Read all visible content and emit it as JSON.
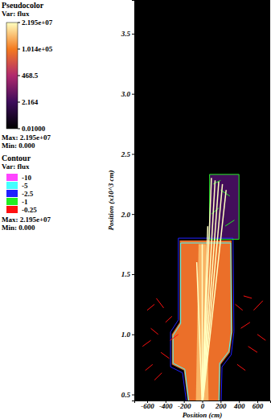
{
  "chart_data": {
    "type": "pseudocolor",
    "legend_title": "Pseudocolor",
    "variable_label": "Var: flux",
    "x_label": "Position (cm)",
    "y_label": "Position (x10^3 cm)",
    "xlim": [
      -740,
      740
    ],
    "ylim": [
      0.45,
      3.78
    ],
    "xticks": [
      -600,
      -400,
      -200,
      0,
      200,
      400,
      600
    ],
    "yticks": [
      0.5,
      {
        "value": 1,
        "label": "1.0"
      },
      1.5,
      {
        "value": 2,
        "label": "2.0"
      },
      2.5,
      {
        "value": 3,
        "label": "3.0"
      },
      3.5
    ],
    "colorbar": {
      "range": [
        0.01,
        21950000
      ],
      "log": true,
      "ticks": [
        {
          "value": 21950000,
          "label": "2.195e+07"
        },
        {
          "value": 101400,
          "label": "1.014e+05"
        },
        468.5,
        2.164,
        {
          "value": 0.01,
          "label": "0.01000"
        }
      ],
      "colors": [
        "#ffffc0",
        "#f47a1f",
        "#b02a6e",
        "#3c0c5a",
        "#000000"
      ],
      "max_label": "Max: 2.195e+07",
      "min_label": "Min: 0.000"
    },
    "contours": {
      "title": "Contour",
      "variable_label": "Var: flux",
      "levels": [
        -10,
        -5,
        -2.5,
        -1,
        -0.25
      ],
      "colors": [
        "#ff44ff",
        "#44ffff",
        "#2020ff",
        "#22ee22",
        "#ff1010"
      ],
      "max_label": "Max: 2.195e+07",
      "min_label": "Min: 0.000"
    },
    "regions": [
      {
        "flux": 50000,
        "x": [
          -245,
          -245,
          -330,
          -330,
          -200,
          -150,
          190,
          200,
          300,
          330,
          320
        ],
        "y": [
          1.78,
          1.1,
          1.0,
          0.75,
          0.7,
          0.4,
          0.4,
          0.75,
          0.85,
          1.02,
          1.78
        ]
      },
      {
        "flux": 1000000,
        "x": [
          -70,
          70,
          40,
          -40
        ],
        "y": [
          0.4,
          0.4,
          1.75,
          1.75
        ]
      },
      {
        "flux": 3,
        "x": [
          80,
          400,
          400,
          80
        ],
        "y": [
          1.79,
          1.79,
          2.33,
          2.33
        ]
      }
    ],
    "beams": [
      {
        "flux": 21950000,
        "x": [
          0,
          100
        ],
        "y": [
          0.4,
          2.3
        ]
      },
      {
        "flux": 21950000,
        "x": [
          0,
          140
        ],
        "y": [
          0.4,
          2.28
        ]
      },
      {
        "flux": 21950000,
        "x": [
          0,
          180
        ],
        "y": [
          0.4,
          2.27
        ]
      },
      {
        "flux": 21950000,
        "x": [
          0,
          220
        ],
        "y": [
          0.4,
          2.25
        ]
      },
      {
        "flux": 21950000,
        "x": [
          0,
          260
        ],
        "y": [
          0.4,
          2.2
        ]
      },
      {
        "flux": 21950000,
        "x": [
          0,
          0
        ],
        "y": [
          0.4,
          1.75
        ]
      },
      {
        "flux": 21950000,
        "x": [
          0,
          60
        ],
        "y": [
          0.4,
          1.9
        ]
      },
      {
        "flux": 21950000,
        "x": [
          0,
          -60
        ],
        "y": [
          0.4,
          1.6
        ]
      }
    ],
    "contour_lines": [
      {
        "level": -2.5,
        "x": [
          -260,
          -260,
          -345,
          -345,
          -215,
          -165,
          205,
          215,
          315,
          345,
          335,
          -260
        ],
        "y": [
          1.8,
          1.12,
          1.02,
          0.73,
          0.68,
          0.4,
          0.4,
          0.73,
          0.83,
          1.02,
          1.8,
          1.8
        ]
      },
      {
        "level": -5,
        "x": [
          -235,
          -235,
          -318,
          -318,
          -190,
          -140,
          180,
          190,
          290,
          318,
          310,
          -235
        ],
        "y": [
          1.76,
          1.09,
          0.99,
          0.76,
          0.71,
          0.4,
          0.4,
          0.76,
          0.86,
          1.02,
          1.76,
          1.76
        ]
      },
      {
        "level": -1,
        "x": [
          80,
          400,
          400,
          80,
          80
        ],
        "y": [
          1.79,
          1.79,
          2.33,
          2.33,
          1.79
        ]
      },
      {
        "level": -1,
        "x": [
          100,
          180
        ],
        "y": [
          2.0,
          2.05
        ]
      },
      {
        "level": -1,
        "x": [
          200,
          300
        ],
        "y": [
          2.2,
          2.15
        ]
      },
      {
        "level": -1,
        "x": [
          250,
          350
        ],
        "y": [
          1.9,
          1.95
        ]
      },
      {
        "level": -1,
        "x": [
          120,
          200
        ],
        "y": [
          2.25,
          2.28
        ]
      },
      {
        "level": -0.25,
        "x": [
          -600,
          -520
        ],
        "y": [
          1.2,
          1.25
        ]
      },
      {
        "level": -0.25,
        "x": [
          -560,
          -480
        ],
        "y": [
          1.05,
          1.0
        ]
      },
      {
        "level": -0.25,
        "x": [
          -650,
          -560
        ],
        "y": [
          0.9,
          0.95
        ]
      },
      {
        "level": -0.25,
        "x": [
          -500,
          -420
        ],
        "y": [
          1.3,
          1.22
        ]
      },
      {
        "level": -0.25,
        "x": [
          -450,
          -360
        ],
        "y": [
          0.85,
          0.8
        ]
      },
      {
        "level": -0.25,
        "x": [
          -400,
          -330
        ],
        "y": [
          1.1,
          1.15
        ]
      },
      {
        "level": -0.25,
        "x": [
          -620,
          -540
        ],
        "y": [
          0.7,
          0.75
        ]
      },
      {
        "level": -0.25,
        "x": [
          -350,
          -260
        ],
        "y": [
          0.95,
          1.0
        ]
      },
      {
        "level": -0.25,
        "x": [
          -520,
          -440
        ],
        "y": [
          0.62,
          0.68
        ]
      },
      {
        "level": -0.25,
        "x": [
          360,
          440
        ],
        "y": [
          1.25,
          1.2
        ]
      },
      {
        "level": -0.25,
        "x": [
          420,
          520
        ],
        "y": [
          1.05,
          1.1
        ]
      },
      {
        "level": -0.25,
        "x": [
          500,
          600
        ],
        "y": [
          0.9,
          0.85
        ]
      },
      {
        "level": -0.25,
        "x": [
          560,
          660
        ],
        "y": [
          1.2,
          1.28
        ]
      },
      {
        "level": -0.25,
        "x": [
          380,
          470
        ],
        "y": [
          0.75,
          0.7
        ]
      },
      {
        "level": -0.25,
        "x": [
          600,
          690
        ],
        "y": [
          1.0,
          0.95
        ]
      },
      {
        "level": -0.25,
        "x": [
          450,
          540
        ],
        "y": [
          1.32,
          1.3
        ]
      }
    ]
  }
}
